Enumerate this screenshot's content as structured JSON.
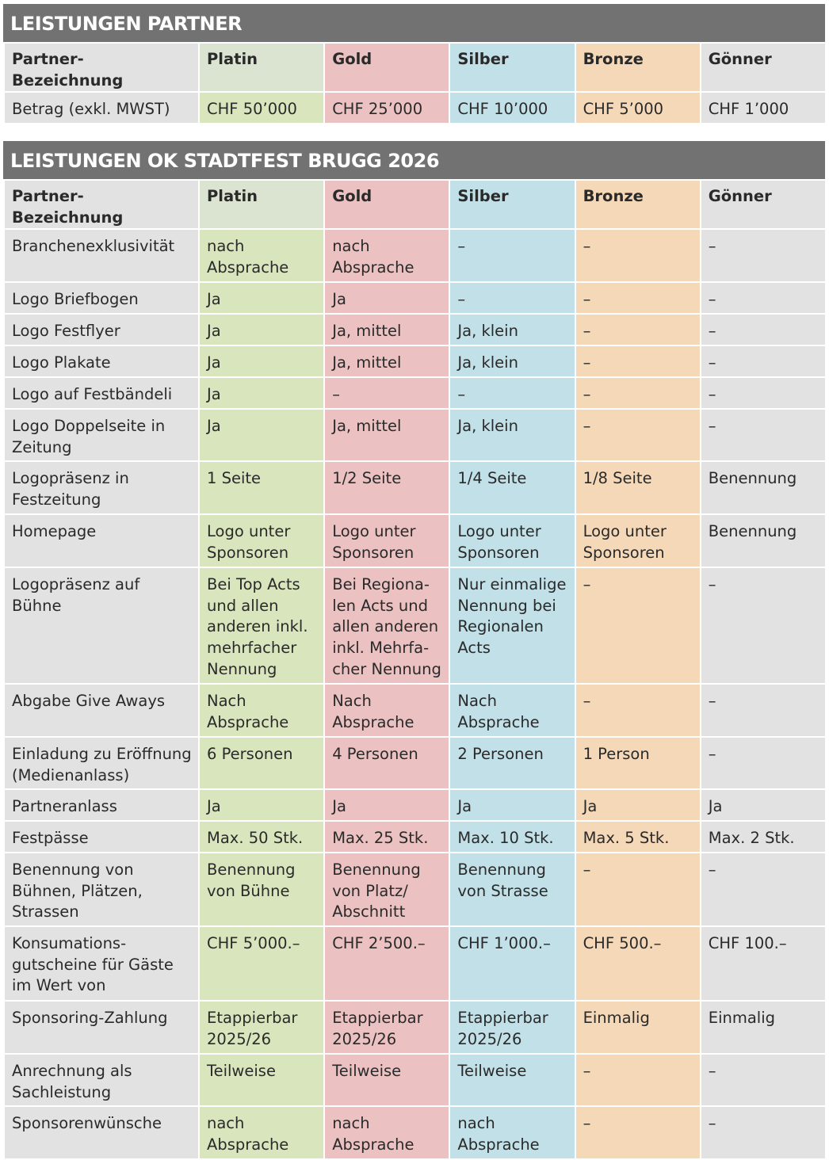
{
  "partner_section": {
    "title": "LEISTUNGEN PARTNER",
    "header": [
      "Partner-Bezeichnung",
      "Platin",
      "Gold",
      "Silber",
      "Bronze",
      "Gönner"
    ],
    "rows": [
      [
        "Betrag (exkl. MWST)",
        "CHF 50’000",
        "CHF 25’000",
        "CHF 10’000",
        "CHF 5’000",
        "CHF 1’000"
      ]
    ]
  },
  "ok_section": {
    "title": "LEISTUNGEN OK STADTFEST BRUGG 2026",
    "header": [
      "Partner-Bezeichnung",
      "Platin",
      "Gold",
      "Silber",
      "Bronze",
      "Gönner"
    ],
    "rows": [
      [
        "Branchenexklusivität",
        "nach\nAbsprache",
        "nach\nAbsprache",
        "–",
        "–",
        "–"
      ],
      [
        "Logo Briefbogen",
        "Ja",
        "Ja",
        "–",
        "–",
        "–"
      ],
      [
        "Logo Festflyer",
        "Ja",
        "Ja, mittel",
        "Ja, klein",
        "–",
        "–"
      ],
      [
        "Logo Plakate",
        "Ja",
        "Ja, mittel",
        "Ja, klein",
        "–",
        "–"
      ],
      [
        "Logo auf Festbändeli",
        "Ja",
        "–",
        "–",
        "–",
        "–"
      ],
      [
        "Logo Doppelseite in\nZeitung",
        "Ja",
        "Ja, mittel",
        "Ja, klein",
        "–",
        "–"
      ],
      [
        "Logopräsenz in\nFestzeitung",
        "1 Seite",
        "1/2 Seite",
        "1/4 Seite",
        "1/8 Seite",
        "Benennung"
      ],
      [
        "Homepage",
        "Logo unter\nSponsoren",
        "Logo unter\nSponsoren",
        "Logo unter\nSponsoren",
        "Logo unter\nSponsoren",
        "Benennung"
      ],
      [
        "Logopräsenz auf Bühne",
        "Bei Top Acts\nund allen\nanderen inkl.\nmehrfacher\nNennung",
        "Bei Regiona-\nlen Acts und\nallen anderen\ninkl. Mehrfa-\ncher Nennung",
        "Nur einmalige\nNennung bei\nRegionalen\nActs",
        "–",
        "–"
      ],
      [
        "Abgabe Give Aways",
        "Nach\nAbsprache",
        "Nach\nAbsprache",
        "Nach\nAbsprache",
        "–",
        "–"
      ],
      [
        "Einladung zu Eröffnung\n(Medienanlass)",
        "6 Personen",
        "4 Personen",
        "2 Personen",
        "1 Person",
        "–"
      ],
      [
        "Partneranlass",
        "Ja",
        "Ja",
        "Ja",
        "Ja",
        "Ja"
      ],
      [
        "Festpässe",
        "Max. 50 Stk.",
        "Max. 25 Stk.",
        "Max. 10 Stk.",
        "Max. 5 Stk.",
        "Max. 2 Stk."
      ],
      [
        "Benennung von\nBühnen, Plätzen,\nStrassen",
        "Benennung\nvon Bühne",
        "Benennung\nvon Platz/\nAbschnitt",
        "Benennung\nvon Strasse",
        "–",
        "–"
      ],
      [
        "Konsumations-\ngutscheine für Gäste\nim Wert von",
        "CHF 5’000.–",
        "CHF 2’500.–",
        "CHF 1’000.–",
        "CHF 500.–",
        "CHF 100.–"
      ],
      [
        "Sponsoring-Zahlung",
        "Etappierbar\n2025/26",
        "Etappierbar\n2025/26",
        "Etappierbar\n2025/26",
        "Einmalig",
        "Einmalig"
      ],
      [
        "Anrechnung als\nSachleistung",
        "Teilweise",
        "Teilweise",
        "Teilweise",
        "–",
        "–"
      ],
      [
        "Sponsorenwünsche",
        "nach\nAbsprache",
        "nach\nAbsprache",
        "nach\nAbsprache",
        "–",
        "–"
      ]
    ]
  },
  "colors": {
    "title_bar": "#727272",
    "label_column": "#e2e2e3",
    "platin": "#d9e6bd",
    "gold": "#ebc1c1",
    "silber": "#c1e0e8",
    "bronze": "#f4d8b8",
    "goenner": "#e2e2e3"
  }
}
